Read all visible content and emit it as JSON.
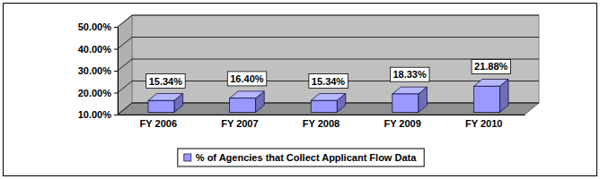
{
  "chart_data": {
    "type": "bar",
    "categories": [
      "FY 2006",
      "FY 2007",
      "FY 2008",
      "FY 2009",
      "FY 2010"
    ],
    "series": [
      {
        "name": "% of Agencies that Collect Applicant Flow Data",
        "color": "#9999ff",
        "values": [
          15.34,
          16.4,
          15.34,
          18.33,
          21.88
        ],
        "value_labels": [
          "15.34%",
          "16.40%",
          "15.34%",
          "18.33%",
          "21.88%"
        ]
      }
    ],
    "ylim": [
      10,
      50
    ],
    "yticks": [
      {
        "value": 10,
        "label": "10.00%"
      },
      {
        "value": 20,
        "label": "20.00%"
      },
      {
        "value": 30,
        "label": "30.00%"
      },
      {
        "value": 40,
        "label": "40.00%"
      },
      {
        "value": 50,
        "label": "50.00%"
      }
    ],
    "grid": true,
    "data_labels": true,
    "legend": "bottom"
  }
}
